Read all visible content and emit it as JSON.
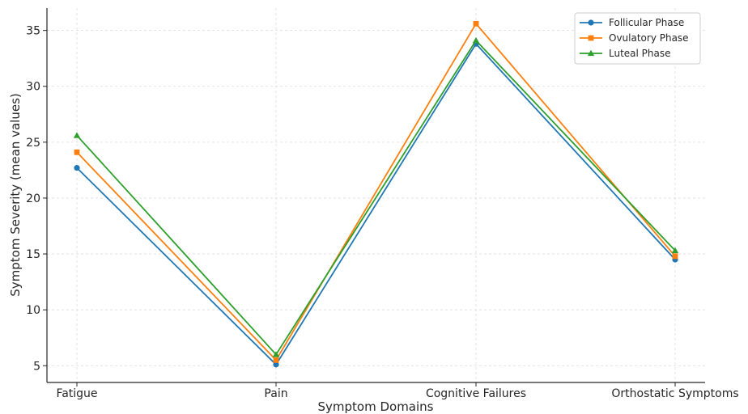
{
  "chart_data": {
    "type": "line",
    "title": "",
    "xlabel": "Symptom Domains",
    "ylabel": "Symptom Severity (mean values)",
    "categories": [
      "Fatigue",
      "Pain",
      "Cognitive Failures",
      "Orthostatic Symptoms"
    ],
    "ylim": [
      3.5,
      37
    ],
    "yticks": [
      5,
      10,
      15,
      20,
      25,
      30,
      35
    ],
    "grid": true,
    "legend_position": "top-right",
    "series": [
      {
        "name": "Follicular Phase",
        "color": "#1f77b4",
        "marker": "circle",
        "values": [
          22.7,
          5.1,
          33.8,
          14.5
        ]
      },
      {
        "name": "Ovulatory Phase",
        "color": "#ff7f0e",
        "marker": "square",
        "values": [
          24.1,
          5.5,
          35.6,
          14.8
        ]
      },
      {
        "name": "Luteal Phase",
        "color": "#2ca02c",
        "marker": "triangle",
        "values": [
          25.6,
          6.0,
          34.1,
          15.3
        ]
      }
    ]
  }
}
